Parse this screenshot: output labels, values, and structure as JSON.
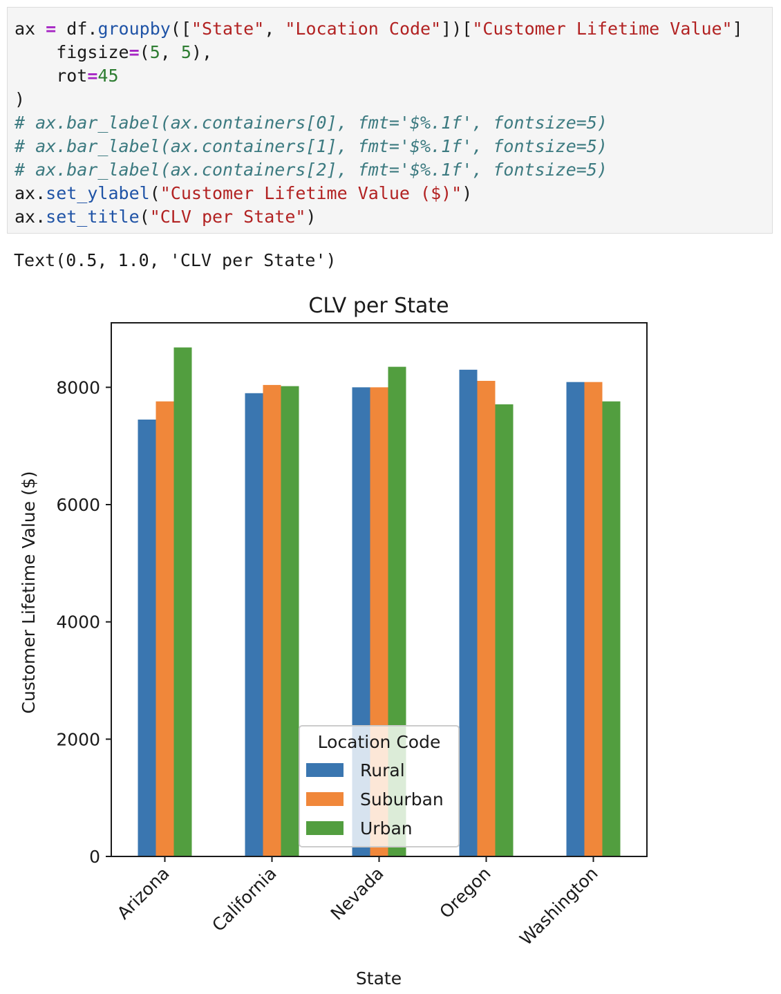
{
  "code": {
    "lines": [
      [
        {
          "t": "ax ",
          "c": "var"
        },
        {
          "t": "=",
          "c": "op"
        },
        {
          "t": " df.",
          "c": "var"
        },
        {
          "t": "groupby",
          "c": "fn"
        },
        {
          "t": "([",
          "c": "var"
        },
        {
          "t": "\"State\"",
          "c": "str"
        },
        {
          "t": ", ",
          "c": "var"
        },
        {
          "t": "\"Location Code\"",
          "c": "str"
        },
        {
          "t": "])[",
          "c": "var"
        },
        {
          "t": "\"Customer Lifetime Value\"",
          "c": "str"
        },
        {
          "t": "]",
          "c": "var"
        }
      ],
      [
        {
          "t": "    figsize",
          "c": "var"
        },
        {
          "t": "=",
          "c": "op"
        },
        {
          "t": "(",
          "c": "var"
        },
        {
          "t": "5",
          "c": "num"
        },
        {
          "t": ", ",
          "c": "var"
        },
        {
          "t": "5",
          "c": "num"
        },
        {
          "t": "),",
          "c": "var"
        }
      ],
      [
        {
          "t": "    rot",
          "c": "var"
        },
        {
          "t": "=",
          "c": "op"
        },
        {
          "t": "45",
          "c": "num"
        }
      ],
      [
        {
          "t": ")",
          "c": "var"
        }
      ],
      [
        {
          "t": "# ax.bar_label(ax.containers[0], fmt='$%.1f', fontsize=5)",
          "c": "cm"
        }
      ],
      [
        {
          "t": "# ax.bar_label(ax.containers[1], fmt='$%.1f', fontsize=5)",
          "c": "cm"
        }
      ],
      [
        {
          "t": "# ax.bar_label(ax.containers[2], fmt='$%.1f', fontsize=5)",
          "c": "cm"
        }
      ],
      [
        {
          "t": "ax.",
          "c": "var"
        },
        {
          "t": "set_ylabel",
          "c": "fn"
        },
        {
          "t": "(",
          "c": "var"
        },
        {
          "t": "\"Customer Lifetime Value ($)\"",
          "c": "str"
        },
        {
          "t": ")",
          "c": "var"
        }
      ],
      [
        {
          "t": "ax.",
          "c": "var"
        },
        {
          "t": "set_title",
          "c": "fn"
        },
        {
          "t": "(",
          "c": "var"
        },
        {
          "t": "\"CLV per State\"",
          "c": "str"
        },
        {
          "t": ")",
          "c": "var"
        }
      ]
    ]
  },
  "output": {
    "text": "Text(0.5, 1.0, 'CLV per State')"
  },
  "chart_data": {
    "type": "bar",
    "title": "CLV per State",
    "xlabel": "State",
    "ylabel": "Customer Lifetime Value ($)",
    "categories": [
      "Arizona",
      "California",
      "Nevada",
      "Oregon",
      "Washington"
    ],
    "series": [
      {
        "name": "Rural",
        "color": "#3a76b0",
        "values": [
          7450,
          7900,
          8000,
          8300,
          8090
        ]
      },
      {
        "name": "Suburban",
        "color": "#f0873a",
        "values": [
          7760,
          8040,
          8000,
          8110,
          8090
        ]
      },
      {
        "name": "Urban",
        "color": "#529e3f",
        "values": [
          8680,
          8020,
          8350,
          7710,
          7760
        ]
      }
    ],
    "ylim": [
      0,
      9100
    ],
    "yticks": [
      0,
      2000,
      4000,
      6000,
      8000
    ],
    "ytick_labels": [
      "0",
      "2000",
      "4000",
      "6000",
      "8000"
    ],
    "legend": {
      "title": "Location Code",
      "placement": "lower-center"
    },
    "grid": false
  }
}
